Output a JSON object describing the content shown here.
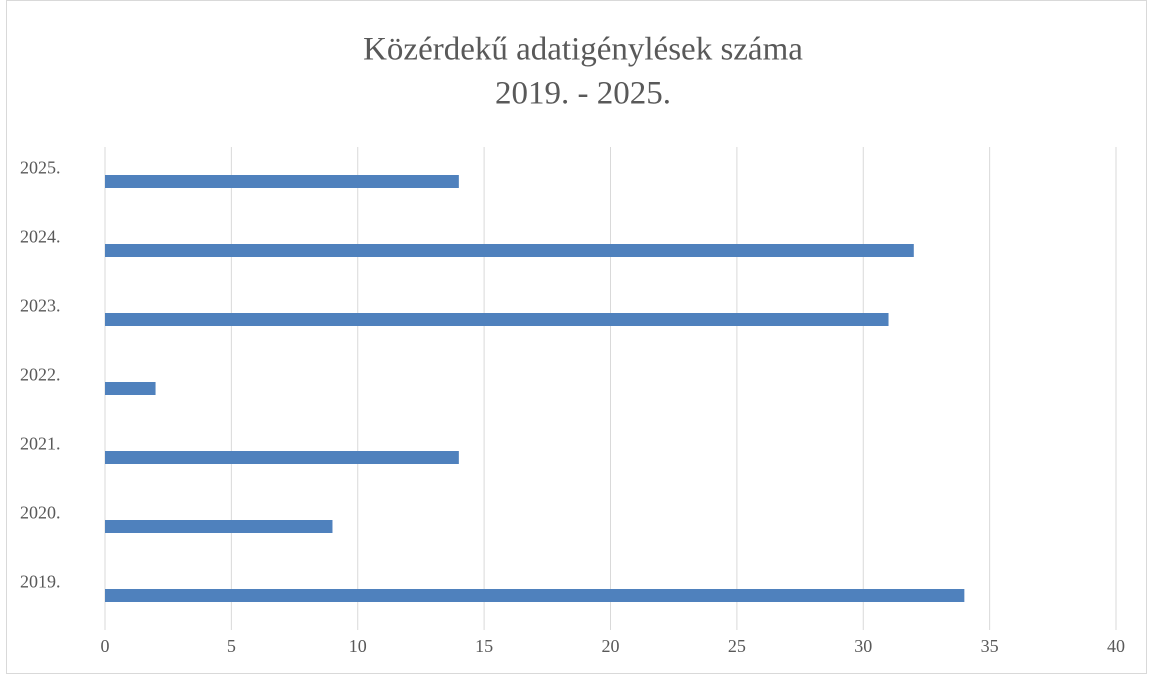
{
  "chart_data": {
    "type": "barh",
    "title": "Közérdekű adatigénylések száma",
    "subtitle": "2019. - 2025.",
    "categories": [
      "2019.",
      "2020.",
      "2021.",
      "2022.",
      "2023.",
      "2024.",
      "2025."
    ],
    "values": [
      34,
      9,
      14,
      2,
      31,
      32,
      14
    ],
    "color": "#4f81bd",
    "xlim": [
      0,
      40
    ],
    "xticks": [
      0,
      5,
      10,
      15,
      20,
      25,
      30,
      35,
      40
    ],
    "grid": true
  }
}
